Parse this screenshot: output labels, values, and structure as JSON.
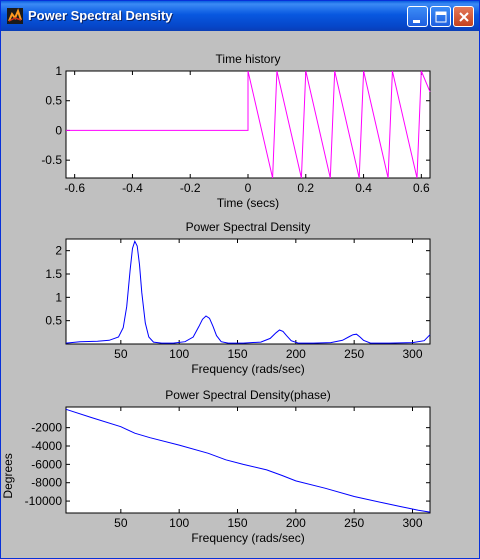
{
  "window": {
    "title": "Power Spectral Density",
    "icon": "matlab-figure-icon",
    "controls": {
      "minimize": "minimize-icon",
      "maximize": "maximize-icon",
      "close": "close-icon"
    }
  },
  "colors": {
    "time_series": "#ff00ff",
    "psd_series": "#0000ff",
    "phase_series": "#0000ff",
    "axes_background": "#ffffff",
    "figure_background": "#c0c0c0"
  },
  "chart_data": [
    {
      "type": "line",
      "title": "Time history",
      "xlabel": "Time (secs)",
      "ylabel": "",
      "xlim": [
        -0.63,
        0.63
      ],
      "ylim": [
        -0.8,
        1.0
      ],
      "xticks": [
        "-0.6",
        "-0.4",
        "-0.2",
        "0",
        "0.2",
        "0.4",
        "0.6"
      ],
      "yticks": [
        "-0.5",
        "0",
        "0.5",
        "1"
      ],
      "series": [
        {
          "x": [
            -0.63,
            0.0,
            0.0,
            0.085,
            0.1,
            0.185,
            0.2,
            0.285,
            0.3,
            0.385,
            0.4,
            0.485,
            0.5,
            0.585,
            0.6,
            0.63
          ],
          "y": [
            0,
            0,
            1,
            -0.8,
            1,
            -0.8,
            1,
            -0.8,
            1,
            -0.8,
            1,
            -0.8,
            1,
            -0.8,
            1,
            0.65
          ]
        }
      ]
    },
    {
      "type": "line",
      "title": "Power Spectral Density",
      "xlabel": "Frequency (rads/sec)",
      "ylabel": "",
      "xlim": [
        3,
        315
      ],
      "ylim": [
        0,
        2.25
      ],
      "xticks": [
        "50",
        "100",
        "150",
        "200",
        "250",
        "300"
      ],
      "yticks": [
        "0.5",
        "1",
        "1.5",
        "2"
      ],
      "series": [
        {
          "x": [
            3,
            15,
            30,
            40,
            48,
            52,
            55,
            58,
            60,
            62,
            64,
            66,
            68,
            71,
            74,
            78,
            85,
            95,
            105,
            112,
            117,
            120,
            123,
            126,
            129,
            132,
            136,
            142,
            155,
            170,
            178,
            183,
            186,
            189,
            192,
            196,
            202,
            215,
            230,
            240,
            246,
            249,
            252,
            255,
            258,
            264,
            280,
            300,
            310,
            315
          ],
          "y": [
            0.02,
            0.05,
            0.06,
            0.08,
            0.15,
            0.35,
            0.8,
            1.6,
            2.05,
            2.2,
            2.1,
            1.7,
            1.1,
            0.45,
            0.15,
            0.04,
            0.02,
            0.02,
            0.05,
            0.15,
            0.38,
            0.53,
            0.6,
            0.55,
            0.38,
            0.18,
            0.05,
            0.02,
            0.02,
            0.04,
            0.12,
            0.24,
            0.3,
            0.27,
            0.18,
            0.07,
            0.02,
            0.02,
            0.03,
            0.08,
            0.16,
            0.2,
            0.21,
            0.15,
            0.08,
            0.02,
            0.02,
            0.03,
            0.07,
            0.2
          ]
        }
      ]
    },
    {
      "type": "line",
      "title": "Power Spectral Density(phase)",
      "xlabel": "Frequency (rads/sec)",
      "ylabel": "Degrees",
      "xlim": [
        3,
        315
      ],
      "ylim": [
        -11300,
        250
      ],
      "xticks": [
        "50",
        "100",
        "150",
        "200",
        "250",
        "300"
      ],
      "yticks": [
        "-10000",
        "-8000",
        "-6000",
        "-4000",
        "-2000"
      ],
      "series": [
        {
          "x": [
            3,
            25,
            50,
            62,
            75,
            100,
            125,
            140,
            155,
            175,
            188,
            200,
            225,
            250,
            275,
            290,
            305,
            315
          ],
          "y": [
            0,
            -900,
            -1900,
            -2600,
            -3100,
            -3900,
            -4800,
            -5500,
            -6000,
            -6600,
            -7200,
            -7800,
            -8600,
            -9500,
            -10200,
            -10600,
            -11000,
            -11200
          ]
        }
      ]
    }
  ]
}
